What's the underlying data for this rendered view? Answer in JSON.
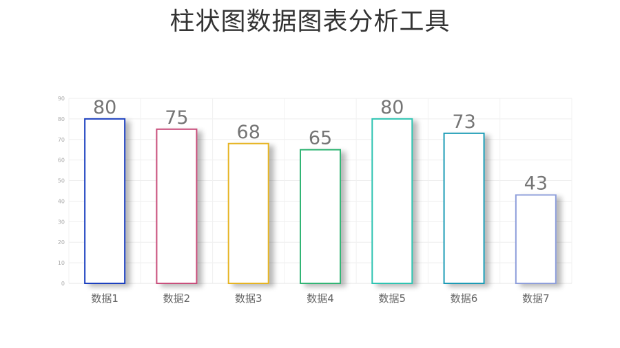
{
  "title": "柱状图数据图表分析工具",
  "chart_data": {
    "type": "bar",
    "categories": [
      "数据1",
      "数据2",
      "数据3",
      "数据4",
      "数据5",
      "数据6",
      "数据7"
    ],
    "values": [
      80,
      75,
      68,
      65,
      80,
      73,
      43
    ],
    "colors": [
      "#1f3fbf",
      "#c94f7c",
      "#e6b422",
      "#33b575",
      "#2fc4b2",
      "#1a9bb5",
      "#8f9fdb"
    ],
    "ylim": [
      0,
      90
    ],
    "yticks": [
      0,
      10,
      20,
      30,
      40,
      50,
      60,
      70,
      80,
      90
    ],
    "grid": true,
    "data_labels": true
  }
}
